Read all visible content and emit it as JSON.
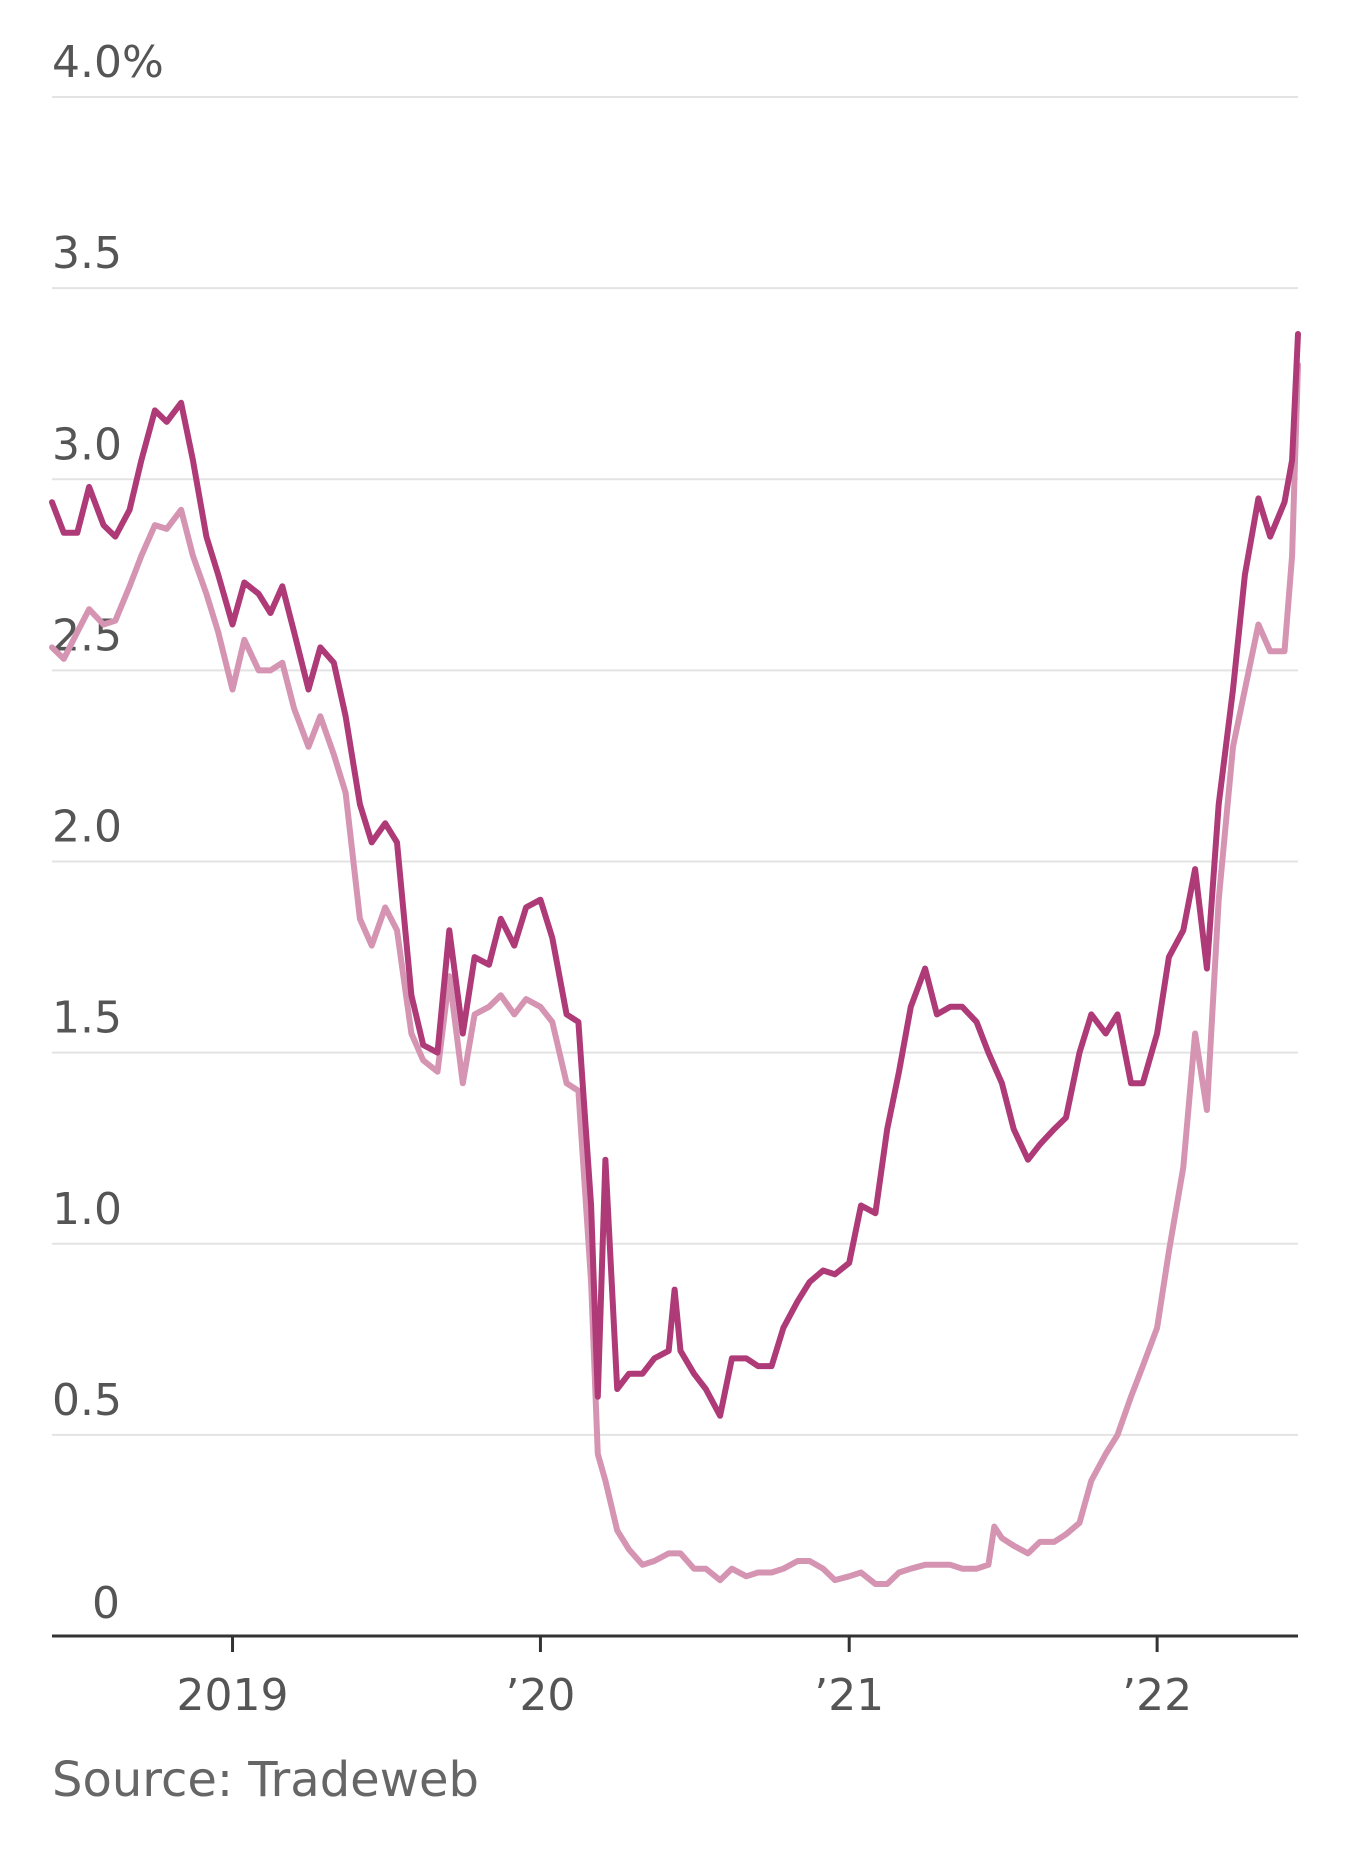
{
  "colors": {
    "series_dark": "#ae3a78",
    "series_light": "#d594b2",
    "grid": "#e3e3e3",
    "axis": "#333333",
    "text": "#555555"
  },
  "source": "Source: Tradeweb",
  "chart_data": {
    "type": "line",
    "ylim": [
      0,
      4.0
    ],
    "xlim": [
      "2018-06-01",
      "2022-06-17"
    ],
    "y_ticks": [
      {
        "value": 4.0,
        "label": "4.0%"
      },
      {
        "value": 3.5,
        "label": "3.5"
      },
      {
        "value": 3.0,
        "label": "3.0"
      },
      {
        "value": 2.5,
        "label": "2.5"
      },
      {
        "value": 2.0,
        "label": "2.0"
      },
      {
        "value": 1.5,
        "label": "1.5"
      },
      {
        "value": 1.0,
        "label": "1.0"
      },
      {
        "value": 0.5,
        "label": "0.5"
      },
      {
        "value": 0,
        "label": "0"
      }
    ],
    "x_ticks": [
      {
        "value": "2019-01-01",
        "label": "2019"
      },
      {
        "value": "2020-01-01",
        "label": "’20"
      },
      {
        "value": "2021-01-01",
        "label": "’21"
      },
      {
        "value": "2022-01-01",
        "label": "’22"
      }
    ],
    "grid": true,
    "series": [
      {
        "color": "#ae3a78",
        "points": [
          [
            "2018-06-01",
            2.94
          ],
          [
            "2018-06-15",
            2.86
          ],
          [
            "2018-07-01",
            2.86
          ],
          [
            "2018-07-15",
            2.98
          ],
          [
            "2018-08-01",
            2.88
          ],
          [
            "2018-08-15",
            2.85
          ],
          [
            "2018-09-01",
            2.92
          ],
          [
            "2018-09-15",
            3.05
          ],
          [
            "2018-10-01",
            3.18
          ],
          [
            "2018-10-15",
            3.15
          ],
          [
            "2018-11-01",
            3.2
          ],
          [
            "2018-11-15",
            3.05
          ],
          [
            "2018-12-01",
            2.85
          ],
          [
            "2018-12-15",
            2.75
          ],
          [
            "2019-01-01",
            2.62
          ],
          [
            "2019-01-15",
            2.73
          ],
          [
            "2019-02-01",
            2.7
          ],
          [
            "2019-02-15",
            2.65
          ],
          [
            "2019-03-01",
            2.72
          ],
          [
            "2019-03-15",
            2.6
          ],
          [
            "2019-04-01",
            2.45
          ],
          [
            "2019-04-15",
            2.56
          ],
          [
            "2019-05-01",
            2.52
          ],
          [
            "2019-05-15",
            2.38
          ],
          [
            "2019-06-01",
            2.15
          ],
          [
            "2019-06-15",
            2.05
          ],
          [
            "2019-07-01",
            2.1
          ],
          [
            "2019-07-15",
            2.05
          ],
          [
            "2019-08-01",
            1.65
          ],
          [
            "2019-08-15",
            1.52
          ],
          [
            "2019-09-01",
            1.5
          ],
          [
            "2019-09-15",
            1.82
          ],
          [
            "2019-10-01",
            1.55
          ],
          [
            "2019-10-15",
            1.75
          ],
          [
            "2019-11-01",
            1.73
          ],
          [
            "2019-11-15",
            1.85
          ],
          [
            "2019-12-01",
            1.78
          ],
          [
            "2019-12-15",
            1.88
          ],
          [
            "2020-01-01",
            1.9
          ],
          [
            "2020-01-15",
            1.8
          ],
          [
            "2020-02-01",
            1.6
          ],
          [
            "2020-02-15",
            1.58
          ],
          [
            "2020-03-01",
            1.1
          ],
          [
            "2020-03-09",
            0.6
          ],
          [
            "2020-03-18",
            1.22
          ],
          [
            "2020-04-01",
            0.62
          ],
          [
            "2020-04-15",
            0.66
          ],
          [
            "2020-05-01",
            0.66
          ],
          [
            "2020-05-15",
            0.7
          ],
          [
            "2020-06-01",
            0.72
          ],
          [
            "2020-06-08",
            0.88
          ],
          [
            "2020-06-15",
            0.72
          ],
          [
            "2020-07-01",
            0.66
          ],
          [
            "2020-07-15",
            0.62
          ],
          [
            "2020-08-01",
            0.55
          ],
          [
            "2020-08-15",
            0.7
          ],
          [
            "2020-09-01",
            0.7
          ],
          [
            "2020-09-15",
            0.68
          ],
          [
            "2020-10-01",
            0.68
          ],
          [
            "2020-10-15",
            0.78
          ],
          [
            "2020-11-01",
            0.85
          ],
          [
            "2020-11-15",
            0.9
          ],
          [
            "2020-12-01",
            0.93
          ],
          [
            "2020-12-15",
            0.92
          ],
          [
            "2021-01-01",
            0.95
          ],
          [
            "2021-01-15",
            1.1
          ],
          [
            "2021-02-01",
            1.08
          ],
          [
            "2021-02-15",
            1.3
          ],
          [
            "2021-03-01",
            1.45
          ],
          [
            "2021-03-15",
            1.62
          ],
          [
            "2021-04-01",
            1.72
          ],
          [
            "2021-04-15",
            1.6
          ],
          [
            "2021-05-01",
            1.62
          ],
          [
            "2021-05-15",
            1.62
          ],
          [
            "2021-06-01",
            1.58
          ],
          [
            "2021-06-15",
            1.5
          ],
          [
            "2021-07-01",
            1.42
          ],
          [
            "2021-07-15",
            1.3
          ],
          [
            "2021-08-01",
            1.22
          ],
          [
            "2021-08-15",
            1.26
          ],
          [
            "2021-09-01",
            1.3
          ],
          [
            "2021-09-15",
            1.33
          ],
          [
            "2021-10-01",
            1.5
          ],
          [
            "2021-10-15",
            1.6
          ],
          [
            "2021-11-01",
            1.55
          ],
          [
            "2021-11-15",
            1.6
          ],
          [
            "2021-12-01",
            1.42
          ],
          [
            "2021-12-15",
            1.42
          ],
          [
            "2022-01-01",
            1.55
          ],
          [
            "2022-01-15",
            1.75
          ],
          [
            "2022-02-01",
            1.82
          ],
          [
            "2022-02-15",
            1.98
          ],
          [
            "2022-03-01",
            1.72
          ],
          [
            "2022-03-15",
            2.15
          ],
          [
            "2022-04-01",
            2.45
          ],
          [
            "2022-04-15",
            2.75
          ],
          [
            "2022-05-01",
            2.95
          ],
          [
            "2022-05-15",
            2.85
          ],
          [
            "2022-06-01",
            2.94
          ],
          [
            "2022-06-10",
            3.05
          ],
          [
            "2022-06-17",
            3.38
          ]
        ]
      },
      {
        "color": "#d594b2",
        "points": [
          [
            "2018-06-01",
            2.56
          ],
          [
            "2018-06-15",
            2.53
          ],
          [
            "2018-07-01",
            2.6
          ],
          [
            "2018-07-15",
            2.66
          ],
          [
            "2018-08-01",
            2.62
          ],
          [
            "2018-08-15",
            2.63
          ],
          [
            "2018-09-01",
            2.72
          ],
          [
            "2018-09-15",
            2.8
          ],
          [
            "2018-10-01",
            2.88
          ],
          [
            "2018-10-15",
            2.87
          ],
          [
            "2018-11-01",
            2.92
          ],
          [
            "2018-11-15",
            2.8
          ],
          [
            "2018-12-01",
            2.7
          ],
          [
            "2018-12-15",
            2.6
          ],
          [
            "2019-01-01",
            2.45
          ],
          [
            "2019-01-15",
            2.58
          ],
          [
            "2019-02-01",
            2.5
          ],
          [
            "2019-02-15",
            2.5
          ],
          [
            "2019-03-01",
            2.52
          ],
          [
            "2019-03-15",
            2.4
          ],
          [
            "2019-04-01",
            2.3
          ],
          [
            "2019-04-15",
            2.38
          ],
          [
            "2019-05-01",
            2.28
          ],
          [
            "2019-05-15",
            2.18
          ],
          [
            "2019-06-01",
            1.85
          ],
          [
            "2019-06-15",
            1.78
          ],
          [
            "2019-07-01",
            1.88
          ],
          [
            "2019-07-15",
            1.82
          ],
          [
            "2019-08-01",
            1.55
          ],
          [
            "2019-08-15",
            1.48
          ],
          [
            "2019-09-01",
            1.45
          ],
          [
            "2019-09-15",
            1.7
          ],
          [
            "2019-10-01",
            1.42
          ],
          [
            "2019-10-15",
            1.6
          ],
          [
            "2019-11-01",
            1.62
          ],
          [
            "2019-11-15",
            1.65
          ],
          [
            "2019-12-01",
            1.6
          ],
          [
            "2019-12-15",
            1.64
          ],
          [
            "2020-01-01",
            1.62
          ],
          [
            "2020-01-15",
            1.58
          ],
          [
            "2020-02-01",
            1.42
          ],
          [
            "2020-02-15",
            1.4
          ],
          [
            "2020-03-01",
            0.9
          ],
          [
            "2020-03-09",
            0.45
          ],
          [
            "2020-03-18",
            0.38
          ],
          [
            "2020-04-01",
            0.25
          ],
          [
            "2020-04-15",
            0.2
          ],
          [
            "2020-05-01",
            0.16
          ],
          [
            "2020-05-15",
            0.17
          ],
          [
            "2020-06-01",
            0.19
          ],
          [
            "2020-06-15",
            0.19
          ],
          [
            "2020-07-01",
            0.15
          ],
          [
            "2020-07-15",
            0.15
          ],
          [
            "2020-08-01",
            0.12
          ],
          [
            "2020-08-15",
            0.15
          ],
          [
            "2020-09-01",
            0.13
          ],
          [
            "2020-09-15",
            0.14
          ],
          [
            "2020-10-01",
            0.14
          ],
          [
            "2020-10-15",
            0.15
          ],
          [
            "2020-11-01",
            0.17
          ],
          [
            "2020-11-15",
            0.17
          ],
          [
            "2020-12-01",
            0.15
          ],
          [
            "2020-12-15",
            0.12
          ],
          [
            "2021-01-01",
            0.13
          ],
          [
            "2021-01-15",
            0.14
          ],
          [
            "2021-02-01",
            0.11
          ],
          [
            "2021-02-15",
            0.11
          ],
          [
            "2021-03-01",
            0.14
          ],
          [
            "2021-03-15",
            0.15
          ],
          [
            "2021-04-01",
            0.16
          ],
          [
            "2021-04-15",
            0.16
          ],
          [
            "2021-05-01",
            0.16
          ],
          [
            "2021-05-15",
            0.15
          ],
          [
            "2021-06-01",
            0.15
          ],
          [
            "2021-06-15",
            0.16
          ],
          [
            "2021-06-22",
            0.26
          ],
          [
            "2021-07-01",
            0.23
          ],
          [
            "2021-07-15",
            0.21
          ],
          [
            "2021-08-01",
            0.19
          ],
          [
            "2021-08-15",
            0.22
          ],
          [
            "2021-09-01",
            0.22
          ],
          [
            "2021-09-15",
            0.24
          ],
          [
            "2021-10-01",
            0.27
          ],
          [
            "2021-10-15",
            0.38
          ],
          [
            "2021-11-01",
            0.45
          ],
          [
            "2021-11-15",
            0.5
          ],
          [
            "2021-12-01",
            0.6
          ],
          [
            "2021-12-15",
            0.68
          ],
          [
            "2022-01-01",
            0.78
          ],
          [
            "2022-01-15",
            0.98
          ],
          [
            "2022-02-01",
            1.2
          ],
          [
            "2022-02-15",
            1.55
          ],
          [
            "2022-03-01",
            1.35
          ],
          [
            "2022-03-15",
            1.9
          ],
          [
            "2022-04-01",
            2.3
          ],
          [
            "2022-04-15",
            2.45
          ],
          [
            "2022-05-01",
            2.62
          ],
          [
            "2022-05-15",
            2.55
          ],
          [
            "2022-06-01",
            2.55
          ],
          [
            "2022-06-10",
            2.8
          ],
          [
            "2022-06-17",
            3.3
          ]
        ]
      }
    ]
  }
}
